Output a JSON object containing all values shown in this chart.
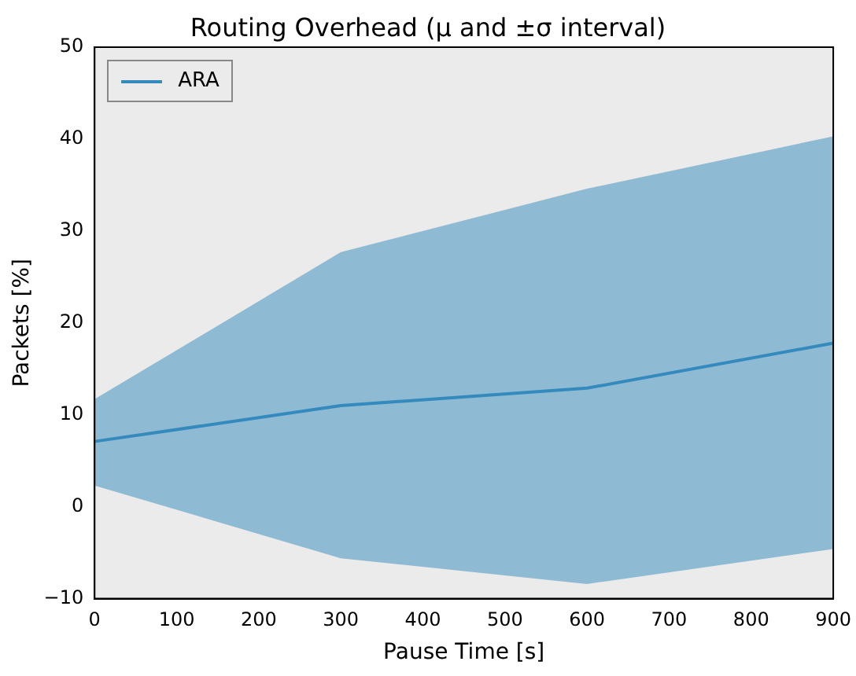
{
  "chart_data": {
    "type": "line",
    "title": "Routing Overhead (μ and ±σ interval)",
    "xlabel": "Pause Time [s]",
    "ylabel": "Packets [%]",
    "x": [
      0,
      300,
      600,
      900
    ],
    "series": [
      {
        "name": "ARA",
        "color": "#348abd",
        "values": [
          7.1,
          11.0,
          12.9,
          17.8
        ],
        "lower": [
          2.3,
          -5.6,
          -8.4,
          -4.6
        ],
        "upper": [
          11.7,
          27.7,
          34.6,
          40.3
        ]
      }
    ],
    "xlim": [
      0,
      900
    ],
    "xticks": [
      0,
      100,
      200,
      300,
      400,
      500,
      600,
      700,
      800,
      900
    ],
    "ylim": [
      -10,
      50
    ],
    "yticks": [
      -10,
      0,
      10,
      20,
      30,
      40,
      50
    ],
    "grid": false,
    "legend": "top left",
    "marker": "none",
    "line_style": "solid"
  }
}
